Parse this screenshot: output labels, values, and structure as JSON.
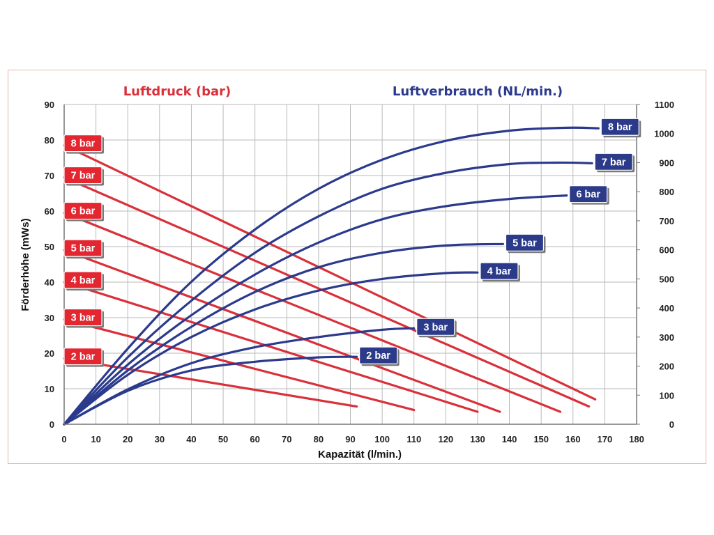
{
  "chart_data": {
    "type": "line",
    "left_header": "Luftdruck (bar)",
    "right_header": "Luftverbrauch (NL/min.)",
    "xlabel": "Kapazität (l/min.)",
    "ylabel": "Förderhöhe (mWs)",
    "xlim": [
      0,
      180
    ],
    "ylim": [
      0,
      90
    ],
    "y2lim": [
      0,
      1100
    ],
    "x_ticks": [
      0,
      10,
      20,
      30,
      40,
      50,
      60,
      70,
      80,
      90,
      100,
      110,
      120,
      130,
      140,
      150,
      160,
      170,
      180
    ],
    "y_ticks": [
      0,
      10,
      20,
      30,
      40,
      50,
      60,
      70,
      80,
      90
    ],
    "y2_ticks": [
      0,
      100,
      200,
      300,
      400,
      500,
      600,
      700,
      800,
      900,
      1000,
      1100
    ],
    "grid": true,
    "colors": {
      "pressure": "#d9303a",
      "consumption": "#2b3a8c",
      "badge_red": "#e32630",
      "badge_blue": "#2c3a8a"
    },
    "pressure_series": [
      {
        "name": "8 bar",
        "x": [
          0,
          167
        ],
        "y": [
          78.5,
          7
        ]
      },
      {
        "name": "7 bar",
        "x": [
          0,
          165
        ],
        "y": [
          69.5,
          5
        ]
      },
      {
        "name": "6 bar",
        "x": [
          0,
          156
        ],
        "y": [
          59.5,
          3.5
        ]
      },
      {
        "name": "5 bar",
        "x": [
          0,
          137
        ],
        "y": [
          49,
          3.5
        ]
      },
      {
        "name": "4 bar",
        "x": [
          0,
          130
        ],
        "y": [
          40,
          3.5
        ]
      },
      {
        "name": "3 bar",
        "x": [
          0,
          110
        ],
        "y": [
          29.5,
          4
        ]
      },
      {
        "name": "2 bar",
        "x": [
          0,
          92
        ],
        "y": [
          18.5,
          5
        ]
      }
    ],
    "consumption_series": [
      {
        "name": "8 bar",
        "x": [
          0,
          20,
          40,
          60,
          80,
          100,
          120,
          140,
          158,
          168
        ],
        "y": [
          0,
          260,
          490,
          670,
          810,
          910,
          975,
          1010,
          1020,
          1018
        ]
      },
      {
        "name": "7 bar",
        "x": [
          0,
          20,
          40,
          60,
          80,
          100,
          120,
          140,
          155,
          166
        ],
        "y": [
          0,
          230,
          425,
          590,
          715,
          810,
          865,
          895,
          900,
          898
        ]
      },
      {
        "name": "6 bar",
        "x": [
          0,
          20,
          40,
          60,
          80,
          100,
          120,
          140,
          158
        ],
        "y": [
          0,
          205,
          375,
          515,
          625,
          705,
          750,
          775,
          787
        ]
      },
      {
        "name": "5 bar",
        "x": [
          0,
          20,
          40,
          60,
          80,
          100,
          120,
          138
        ],
        "y": [
          0,
          185,
          335,
          455,
          540,
          590,
          615,
          620
        ]
      },
      {
        "name": "4 bar",
        "x": [
          0,
          20,
          40,
          60,
          80,
          100,
          120,
          130
        ],
        "y": [
          0,
          170,
          300,
          395,
          460,
          500,
          520,
          522
        ]
      },
      {
        "name": "3 bar",
        "x": [
          0,
          20,
          40,
          60,
          80,
          100,
          110
        ],
        "y": [
          0,
          120,
          210,
          265,
          300,
          325,
          330
        ]
      },
      {
        "name": "2 bar",
        "x": [
          0,
          20,
          40,
          60,
          80,
          92
        ],
        "y": [
          0,
          115,
          185,
          215,
          230,
          232
        ]
      }
    ]
  }
}
